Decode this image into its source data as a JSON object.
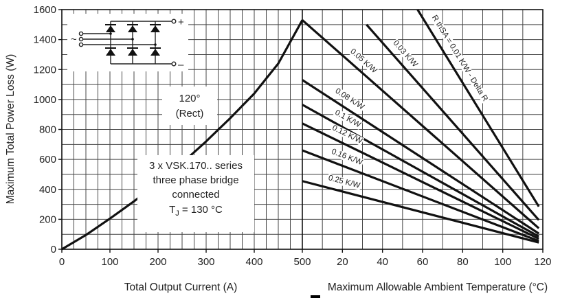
{
  "chart_data": [
    {
      "type": "line",
      "title": "",
      "xlabel": "Total Output Current (A)",
      "ylabel": "Maximum Total Power Loss (W)",
      "xlim": [
        0,
        500
      ],
      "ylim": [
        0,
        1600
      ],
      "x_ticks": [
        "0",
        "100",
        "200",
        "300",
        "400",
        "500"
      ],
      "y_ticks": [
        "0",
        "200",
        "400",
        "600",
        "800",
        "1000",
        "1200",
        "1400",
        "1600"
      ],
      "grid": true,
      "series": [
        {
          "name": "120° (Rect)",
          "x": [
            0,
            50,
            100,
            150,
            200,
            250,
            300,
            350,
            400,
            450,
            500
          ],
          "y": [
            0,
            95,
            205,
            320,
            445,
            575,
            720,
            875,
            1040,
            1240,
            1530
          ]
        }
      ],
      "annotations": {
        "condition_line1": "120°",
        "condition_line2": "(Rect)",
        "device_line1": "3 x VSK.170.. series",
        "device_line2": "three phase bridge",
        "device_line3": "connected",
        "tj_prefix": "T",
        "tj_sub": "J",
        "tj_value": " = 130 °C",
        "terminal_plus": "+",
        "terminal_minus": "–",
        "ac_symbol": "~"
      }
    },
    {
      "type": "line",
      "title": "",
      "xlabel": "Maximum Allowable Ambient Temperature (°C)",
      "ylabel": "",
      "xlim": [
        0,
        120
      ],
      "ylim": [
        0,
        1600
      ],
      "x_ticks": [
        "20",
        "40",
        "60",
        "80",
        "100",
        "120"
      ],
      "grid": true,
      "series": [
        {
          "name": "R thSA = 0.01 K/W - Delta R",
          "x": [
            57.5,
            118
          ],
          "y": [
            1600,
            285
          ]
        },
        {
          "name": "0.03 K/W",
          "x": [
            32,
            118
          ],
          "y": [
            1500,
            195
          ]
        },
        {
          "name": "0.05 K/W",
          "x": [
            0,
            118
          ],
          "y": [
            1530,
            140
          ]
        },
        {
          "name": "0.08 K/W",
          "x": [
            0,
            118
          ],
          "y": [
            1130,
            105
          ]
        },
        {
          "name": "0.1 K/W",
          "x": [
            0,
            118
          ],
          "y": [
            965,
            85
          ]
        },
        {
          "name": "0.12 K/W",
          "x": [
            0,
            118
          ],
          "y": [
            840,
            70
          ]
        },
        {
          "name": "0.16 K/W",
          "x": [
            0,
            118
          ],
          "y": [
            660,
            55
          ]
        },
        {
          "name": "0.25 K/W",
          "x": [
            0,
            118
          ],
          "y": [
            455,
            45
          ]
        }
      ]
    }
  ]
}
